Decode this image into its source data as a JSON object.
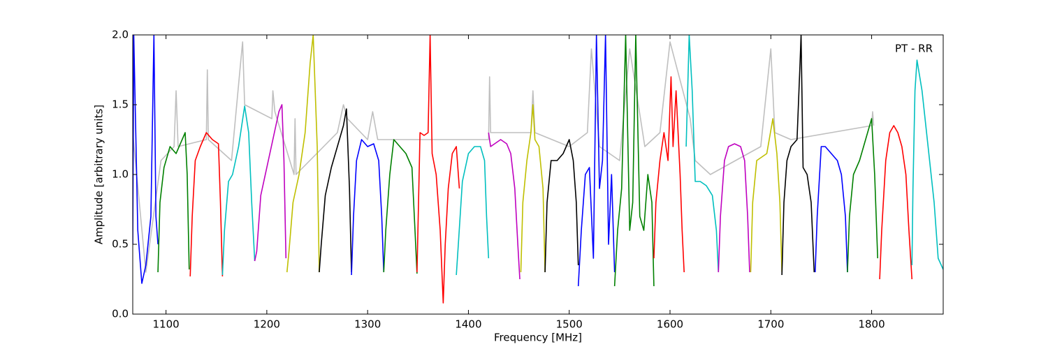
{
  "chart_data": {
    "type": "line",
    "xlabel": "Frequency [MHz]",
    "ylabel": "Amplitude [arbitrary units]",
    "annotation": "PT - RR",
    "xlim": [
      1067,
      1871
    ],
    "ylim": [
      0,
      2
    ],
    "xticks": [
      1100,
      1200,
      1300,
      1400,
      1500,
      1600,
      1700,
      1800
    ],
    "yticks": [
      {
        "value": 0,
        "label": "0.0"
      },
      0.5,
      {
        "value": 1,
        "label": "1.0"
      },
      1.5,
      {
        "value": 2,
        "label": "2.0"
      }
    ],
    "series": [
      {
        "color": "#bfbfbf",
        "x": [
          1067,
          1080,
          1095,
          1108,
          1110,
          1112,
          1140,
          1141,
          1142,
          1165,
          1174,
          1176,
          1178,
          1205,
          1206,
          1208,
          1227,
          1228,
          1229,
          1270,
          1276,
          1280,
          1300,
          1305,
          1310,
          1420,
          1421,
          1422,
          1462,
          1464,
          1466,
          1500,
          1518,
          1522,
          1530,
          1550,
          1560,
          1575,
          1590,
          1600,
          1620,
          1625,
          1640,
          1690,
          1700,
          1704,
          1720,
          1800,
          1801,
          1802
        ],
        "values": [
          1.3,
          0.3,
          1.1,
          1.2,
          1.6,
          1.2,
          1.25,
          1.75,
          1.25,
          1.1,
          1.8,
          1.95,
          1.5,
          1.4,
          1.6,
          1.45,
          1.0,
          1.4,
          1.0,
          1.3,
          1.5,
          1.4,
          1.25,
          1.45,
          1.25,
          1.25,
          1.7,
          1.3,
          1.3,
          1.6,
          1.3,
          1.2,
          1.3,
          1.9,
          1.2,
          1.1,
          1.9,
          1.2,
          1.3,
          1.95,
          1.4,
          1.1,
          1.0,
          1.2,
          1.9,
          1.3,
          1.25,
          1.35,
          1.45,
          1.35
        ]
      },
      {
        "color": "#0000ff",
        "x": [
          1067,
          1068,
          1072,
          1076,
          1080,
          1085,
          1088,
          1090,
          1092
        ],
        "values": [
          0.5,
          2.0,
          0.6,
          0.22,
          0.35,
          0.7,
          2.0,
          0.7,
          0.5
        ]
      },
      {
        "color": "#008000",
        "x": [
          1092,
          1094,
          1098,
          1104,
          1110,
          1116,
          1119,
          1121,
          1123
        ],
        "values": [
          0.3,
          0.8,
          1.05,
          1.2,
          1.15,
          1.25,
          1.3,
          1.0,
          0.32
        ]
      },
      {
        "color": "#ff0000",
        "x": [
          1124,
          1126,
          1129,
          1134,
          1140,
          1146,
          1152,
          1154,
          1156
        ],
        "values": [
          0.27,
          0.7,
          1.1,
          1.2,
          1.3,
          1.25,
          1.22,
          0.8,
          0.27
        ]
      },
      {
        "color": "#00bfbf",
        "x": [
          1156,
          1158,
          1162,
          1166,
          1172,
          1178,
          1182,
          1185,
          1188
        ],
        "values": [
          0.28,
          0.6,
          0.95,
          1.0,
          1.2,
          1.49,
          1.3,
          0.8,
          0.38
        ]
      },
      {
        "color": "#bf00bf",
        "x": [
          1188,
          1190,
          1194,
          1200,
          1206,
          1212,
          1215,
          1217,
          1219
        ],
        "values": [
          0.38,
          0.45,
          0.85,
          1.05,
          1.25,
          1.45,
          1.5,
          1.1,
          0.4
        ]
      },
      {
        "color": "#bfbf00",
        "x": [
          1220,
          1222,
          1226,
          1232,
          1238,
          1243,
          1246,
          1250,
          1252
        ],
        "values": [
          0.3,
          0.45,
          0.8,
          1.0,
          1.3,
          1.8,
          2.0,
          1.2,
          0.3
        ]
      },
      {
        "color": "#000000",
        "x": [
          1252,
          1254,
          1258,
          1264,
          1270,
          1276,
          1279,
          1282,
          1284
        ],
        "values": [
          0.3,
          0.5,
          0.85,
          1.05,
          1.2,
          1.35,
          1.47,
          0.9,
          0.3
        ]
      },
      {
        "color": "#0000ff",
        "x": [
          1284,
          1286,
          1289,
          1294,
          1300,
          1306,
          1311,
          1314,
          1316
        ],
        "values": [
          0.28,
          0.7,
          1.1,
          1.25,
          1.2,
          1.22,
          1.1,
          0.7,
          0.3
        ]
      },
      {
        "color": "#008000",
        "x": [
          1316,
          1318,
          1322,
          1326,
          1332,
          1338,
          1344,
          1347,
          1349
        ],
        "values": [
          0.3,
          0.6,
          1.0,
          1.25,
          1.2,
          1.15,
          1.05,
          0.6,
          0.29
        ]
      },
      {
        "color": "#ff0000",
        "x": [
          1349,
          1352,
          1356,
          1360,
          1362,
          1364,
          1368,
          1372,
          1375,
          1377,
          1380,
          1384,
          1388,
          1391
        ],
        "values": [
          0.3,
          1.3,
          1.28,
          1.3,
          2.0,
          1.15,
          1.0,
          0.6,
          0.08,
          0.5,
          0.9,
          1.15,
          1.2,
          0.9
        ]
      },
      {
        "color": "#00bfbf",
        "x": [
          1388,
          1390,
          1394,
          1400,
          1406,
          1412,
          1416,
          1418,
          1420
        ],
        "values": [
          0.28,
          0.5,
          0.95,
          1.15,
          1.2,
          1.2,
          1.1,
          0.7,
          0.4
        ]
      },
      {
        "color": "#bf00bf",
        "x": [
          1420,
          1422,
          1426,
          1432,
          1438,
          1442,
          1446,
          1449,
          1451
        ],
        "values": [
          1.3,
          1.2,
          1.22,
          1.25,
          1.22,
          1.15,
          0.9,
          0.5,
          0.25
        ]
      },
      {
        "color": "#bfbf00",
        "x": [
          1452,
          1454,
          1458,
          1462,
          1464,
          1466,
          1470,
          1474,
          1476
        ],
        "values": [
          0.3,
          0.8,
          1.1,
          1.3,
          1.5,
          1.25,
          1.2,
          0.9,
          0.3
        ]
      },
      {
        "color": "#000000",
        "x": [
          1476,
          1478,
          1482,
          1488,
          1494,
          1500,
          1504,
          1507,
          1509
        ],
        "values": [
          0.3,
          0.8,
          1.1,
          1.1,
          1.15,
          1.25,
          1.1,
          0.8,
          0.35
        ]
      },
      {
        "color": "#0000ff",
        "x": [
          1509,
          1512,
          1516,
          1520,
          1524,
          1527,
          1530,
          1533,
          1536,
          1539,
          1542,
          1545
        ],
        "values": [
          0.2,
          0.6,
          1.0,
          1.05,
          0.4,
          2.0,
          0.9,
          1.1,
          2.0,
          0.5,
          1.0,
          0.3
        ]
      },
      {
        "color": "#008000",
        "x": [
          1545,
          1548,
          1552,
          1556,
          1560,
          1563,
          1566,
          1570,
          1574,
          1578,
          1582,
          1584
        ],
        "values": [
          0.2,
          0.6,
          0.9,
          2.0,
          0.6,
          0.8,
          2.0,
          0.7,
          0.6,
          1.0,
          0.8,
          0.2
        ]
      },
      {
        "color": "#ff0000",
        "x": [
          1584,
          1586,
          1590,
          1594,
          1598,
          1601,
          1603,
          1606,
          1610,
          1612,
          1614
        ],
        "values": [
          0.4,
          0.8,
          1.1,
          1.3,
          1.1,
          1.7,
          1.2,
          1.6,
          1.0,
          0.6,
          0.3
        ]
      },
      {
        "color": "#00bfbf",
        "x": [
          1616,
          1619,
          1622,
          1625,
          1630,
          1636,
          1642,
          1646,
          1648
        ],
        "values": [
          1.2,
          2.0,
          1.6,
          0.95,
          0.95,
          0.92,
          0.85,
          0.6,
          0.3
        ]
      },
      {
        "color": "#bf00bf",
        "x": [
          1648,
          1650,
          1654,
          1658,
          1664,
          1670,
          1674,
          1677,
          1679
        ],
        "values": [
          0.3,
          0.7,
          1.1,
          1.2,
          1.22,
          1.2,
          1.1,
          0.7,
          0.3
        ]
      },
      {
        "color": "#bfbf00",
        "x": [
          1680,
          1682,
          1686,
          1690,
          1696,
          1702,
          1706,
          1709,
          1711
        ],
        "values": [
          0.3,
          0.8,
          1.1,
          1.12,
          1.15,
          1.4,
          1.15,
          0.8,
          0.3
        ]
      },
      {
        "color": "#000000",
        "x": [
          1711,
          1713,
          1716,
          1720,
          1726,
          1729,
          1730,
          1732,
          1736,
          1740,
          1743
        ],
        "values": [
          0.28,
          0.8,
          1.1,
          1.2,
          1.25,
          1.8,
          2.0,
          1.05,
          1.0,
          0.8,
          0.3
        ]
      },
      {
        "color": "#0000ff",
        "x": [
          1744,
          1746,
          1750,
          1754,
          1760,
          1766,
          1770,
          1774,
          1776
        ],
        "values": [
          0.3,
          0.7,
          1.2,
          1.2,
          1.15,
          1.1,
          1.0,
          0.7,
          0.3
        ]
      },
      {
        "color": "#008000",
        "x": [
          1776,
          1778,
          1782,
          1788,
          1794,
          1798,
          1800,
          1803,
          1806
        ],
        "values": [
          0.3,
          0.7,
          1.0,
          1.1,
          1.25,
          1.35,
          1.4,
          1.0,
          0.4
        ]
      },
      {
        "color": "#ff0000",
        "x": [
          1808,
          1810,
          1814,
          1818,
          1822,
          1826,
          1830,
          1834,
          1837,
          1840
        ],
        "values": [
          0.25,
          0.6,
          1.1,
          1.3,
          1.35,
          1.3,
          1.2,
          1.0,
          0.6,
          0.25
        ]
      },
      {
        "color": "#00bfbf",
        "x": [
          1840,
          1841,
          1843,
          1845,
          1850,
          1856,
          1862,
          1866,
          1871
        ],
        "values": [
          0.35,
          0.9,
          1.6,
          1.82,
          1.6,
          1.2,
          0.8,
          0.4,
          0.32
        ]
      }
    ]
  }
}
